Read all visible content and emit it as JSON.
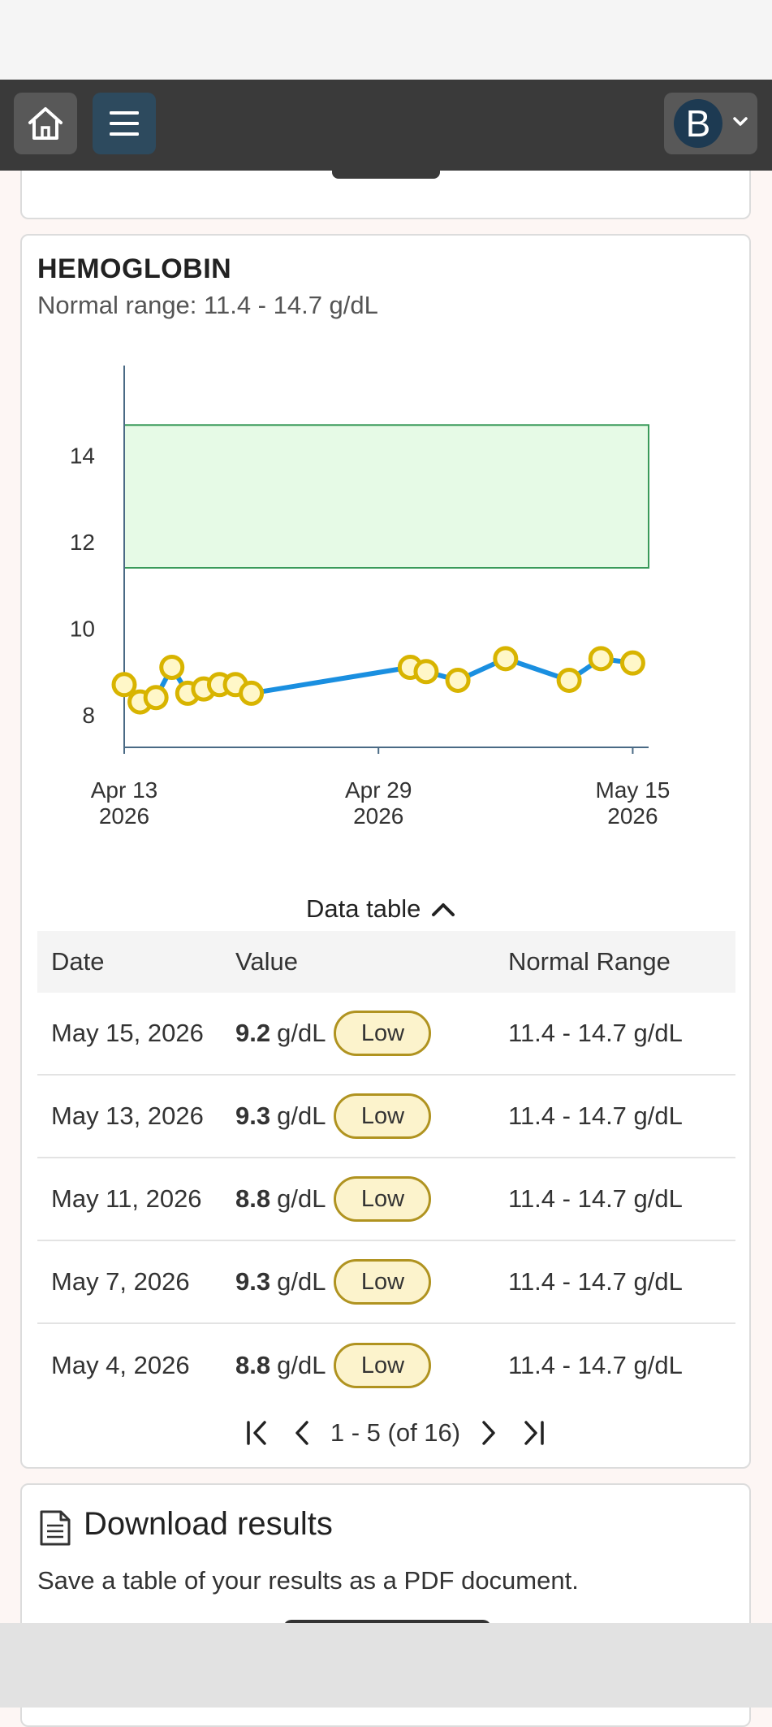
{
  "topbar": {
    "home_icon": "home-icon",
    "menu_icon": "hamburger-menu-icon",
    "avatar_letter": "B",
    "profile_chevron_icon": "chevron-down-icon"
  },
  "test": {
    "title": "HEMOGLOBIN",
    "normal_range_text": "Normal range: 11.4 - 14.7 g/dL"
  },
  "chart_data": {
    "type": "line",
    "x_ticks": [
      "Apr 13\n2026",
      "Apr 29\n2026",
      "May 15\n2026"
    ],
    "x_tick_lines": [
      [
        "Apr 13",
        "2026"
      ],
      [
        "Apr 29",
        "2026"
      ],
      [
        "May 15",
        "2026"
      ]
    ],
    "y_ticks": [
      8,
      10,
      12,
      14
    ],
    "ylim": [
      7.25,
      15.7
    ],
    "xlim": [
      "2026-04-13",
      "2026-05-16"
    ],
    "normal_band": [
      11.4,
      14.7
    ],
    "colors": {
      "line": "#1a8fe0",
      "marker_fill": "#fff7c8",
      "marker_stroke": "#d8b400",
      "band_fill": "#e6fae6",
      "band_stroke": "#3a9a5a"
    },
    "series": [
      {
        "points": [
          {
            "x": "2026-04-13",
            "y": 8.7
          },
          {
            "x": "2026-04-14",
            "y": 8.3
          },
          {
            "x": "2026-04-15",
            "y": 8.4
          },
          {
            "x": "2026-04-16",
            "y": 9.1
          },
          {
            "x": "2026-04-17",
            "y": 8.5
          },
          {
            "x": "2026-04-18",
            "y": 8.6
          },
          {
            "x": "2026-04-19",
            "y": 8.7
          },
          {
            "x": "2026-04-20",
            "y": 8.7
          },
          {
            "x": "2026-04-21",
            "y": 8.5
          },
          {
            "x": "2026-05-01",
            "y": 9.1
          },
          {
            "x": "2026-05-02",
            "y": 9.0
          },
          {
            "x": "2026-05-04",
            "y": 8.8
          },
          {
            "x": "2026-05-07",
            "y": 9.3
          },
          {
            "x": "2026-05-11",
            "y": 8.8
          },
          {
            "x": "2026-05-13",
            "y": 9.3
          },
          {
            "x": "2026-05-15",
            "y": 9.2
          }
        ]
      }
    ]
  },
  "data_table": {
    "toggle_label": "Data table",
    "toggle_icon": "chevron-up-icon",
    "headers": {
      "date": "Date",
      "value": "Value",
      "range": "Normal Range"
    },
    "rows": [
      {
        "date": "May 15, 2026",
        "value": "9.2",
        "unit": "g/dL",
        "flag": "Low",
        "range": "11.4 - 14.7 g/dL"
      },
      {
        "date": "May 13, 2026",
        "value": "9.3",
        "unit": "g/dL",
        "flag": "Low",
        "range": "11.4 - 14.7 g/dL"
      },
      {
        "date": "May 11, 2026",
        "value": "8.8",
        "unit": "g/dL",
        "flag": "Low",
        "range": "11.4 - 14.7 g/dL"
      },
      {
        "date": "May 7, 2026",
        "value": "9.3",
        "unit": "g/dL",
        "flag": "Low",
        "range": "11.4 - 14.7 g/dL"
      },
      {
        "date": "May 4, 2026",
        "value": "8.8",
        "unit": "g/dL",
        "flag": "Low",
        "range": "11.4 - 14.7 g/dL"
      }
    ]
  },
  "pagination": {
    "label": "1 - 5 (of 16)",
    "first_icon": "first-page-icon",
    "prev_icon": "previous-page-icon",
    "next_icon": "next-page-icon",
    "last_icon": "last-page-icon"
  },
  "download": {
    "icon": "document-icon",
    "title": "Download results",
    "description": "Save a table of your results as a PDF document."
  }
}
